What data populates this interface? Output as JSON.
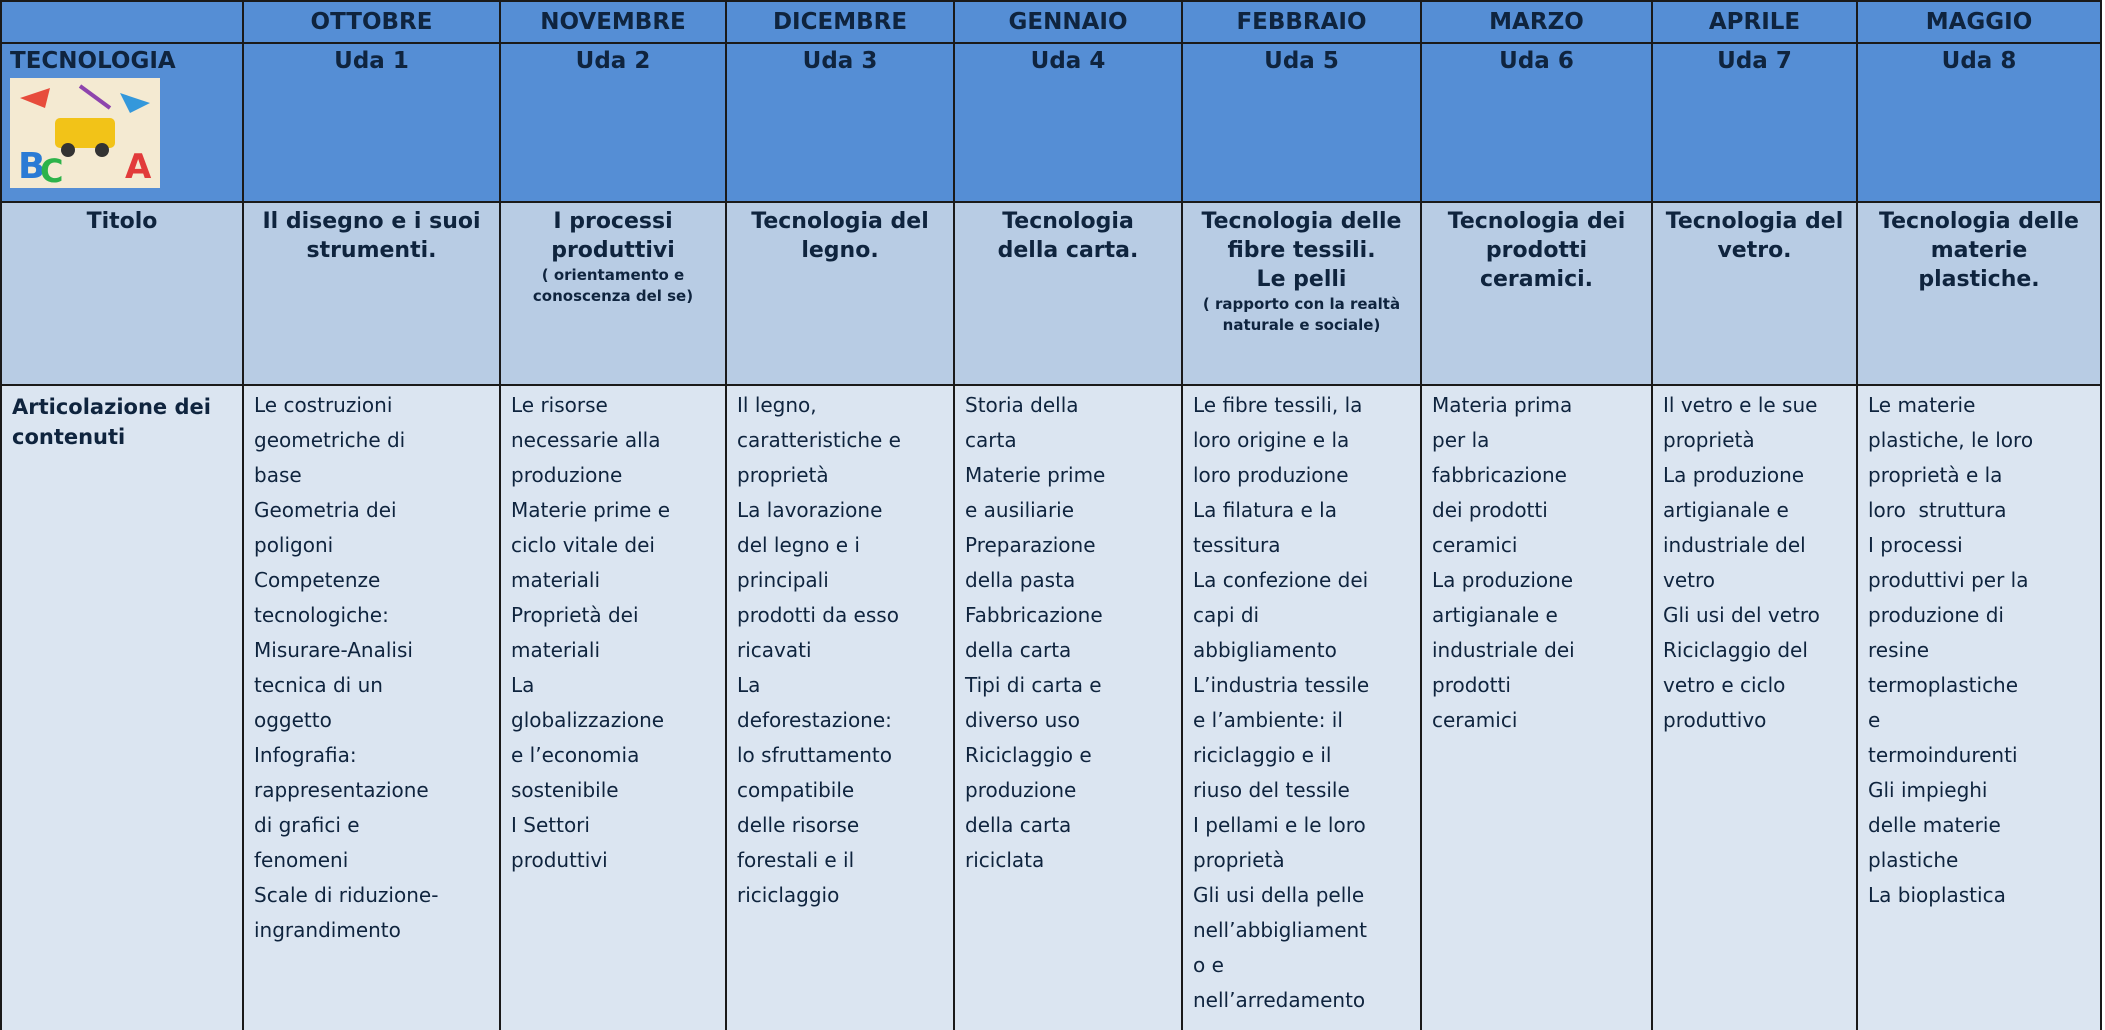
{
  "table": {
    "months": [
      "OTTOBRE",
      "NOVEMBRE",
      "DICEMBRE",
      "GENNAIO",
      "FEBBRAIO",
      "MARZO",
      "APRILE",
      "MAGGIO"
    ],
    "subject": "TECNOLOGIA",
    "udas": [
      "Uda 1",
      "Uda 2",
      "Uda 3",
      "Uda 4",
      "Uda 5",
      "Uda 6",
      "Uda 7",
      "Uda 8"
    ],
    "title_label": "Titolo",
    "titles": [
      {
        "lines": [
          "Il disegno e i suoi",
          "strumenti."
        ]
      },
      {
        "lines": [
          "I processi",
          "produttivi"
        ],
        "note": "( orientamento e conoscenza del se)"
      },
      {
        "lines": [
          "Tecnologia del",
          "legno."
        ]
      },
      {
        "lines": [
          "Tecnologia",
          "della carta."
        ]
      },
      {
        "lines": [
          "Tecnologia delle",
          "fibre tessili.",
          "Le pelli"
        ],
        "note": "( rapporto con la realtà naturale e sociale)"
      },
      {
        "lines": [
          "Tecnologia dei",
          "prodotti",
          "ceramici."
        ]
      },
      {
        "lines": [
          "Tecnologia del",
          "vetro."
        ]
      },
      {
        "lines": [
          "Tecnologia delle",
          "materie",
          "plastiche."
        ]
      }
    ],
    "content_label": "Articolazione dei contenuti",
    "contents": [
      [
        "Le costruzioni",
        "geometriche di",
        "base",
        "Geometria dei",
        "poligoni",
        "Competenze",
        "tecnologiche:",
        "Misurare-Analisi",
        "tecnica di un",
        "oggetto",
        "Infografia:",
        "rappresentazione",
        "di grafici e",
        "fenomeni",
        "Scale di riduzione-",
        "ingrandimento"
      ],
      [
        "Le risorse",
        "necessarie alla",
        "produzione",
        "Materie prime e",
        "ciclo vitale dei",
        "materiali",
        "Proprietà dei",
        "materiali",
        "La",
        "globalizzazione",
        "e l’economia",
        "sostenibile",
        "I Settori",
        "produttivi"
      ],
      [
        "Il legno,",
        "caratteristiche e",
        "proprietà",
        "La lavorazione",
        "del legno e i",
        "principali",
        "prodotti da esso",
        "ricavati",
        "La",
        "deforestazione:",
        "lo sfruttamento",
        "compatibile",
        "delle risorse",
        "forestali e il",
        "riciclaggio"
      ],
      [
        "Storia della",
        "carta",
        "Materie prime",
        "e ausiliarie",
        "Preparazione",
        "della pasta",
        "Fabbricazione",
        "della carta",
        "Tipi di carta e",
        "diverso uso",
        "Riciclaggio e",
        "produzione",
        "della carta",
        "riciclata"
      ],
      [
        "Le fibre tessili, la",
        "loro origine e la",
        "loro produzione",
        "La filatura e la",
        "tessitura",
        "La confezione dei",
        "capi di",
        "abbigliamento",
        "L’industria tessile",
        "e l’ambiente: il",
        "riciclaggio e il",
        "riuso del tessile",
        "I pellami e le loro",
        "proprietà",
        "Gli usi della pelle",
        "nell’abbigliament",
        "o e",
        "nell’arredamento"
      ],
      [
        "Materia prima",
        "per la",
        "fabbricazione",
        "dei prodotti",
        "ceramici",
        "La produzione",
        "artigianale e",
        "industriale dei",
        "prodotti",
        "ceramici"
      ],
      [
        "Il vetro e le sue",
        "proprietà",
        "La produzione",
        "artigianale e",
        "industriale del",
        "vetro",
        "Gli usi del vetro",
        "Riciclaggio del",
        "vetro e ciclo",
        "produttivo"
      ],
      [
        "Le materie",
        "plastiche, le loro",
        "proprietà e la",
        "loro  struttura",
        "I processi",
        "produttivi per la",
        "produzione di",
        "resine",
        "termoplastiche",
        "e",
        "termoindurenti",
        "Gli impieghi",
        "delle materie",
        "plastiche",
        "La bioplastica"
      ]
    ]
  }
}
